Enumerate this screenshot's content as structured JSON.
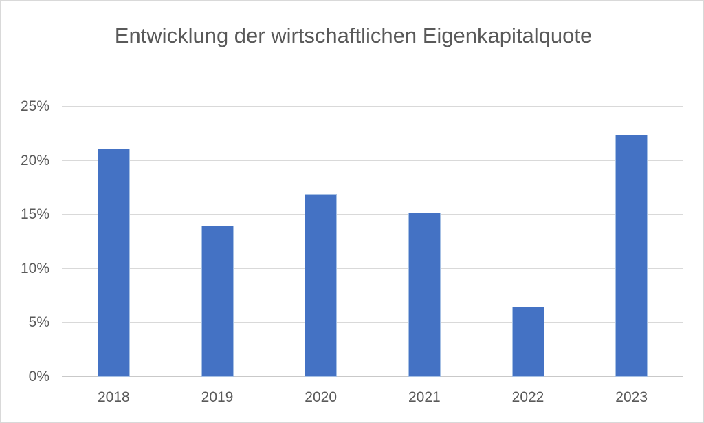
{
  "chart_data": {
    "type": "bar",
    "title": "Entwicklung der wirtschaftlichen Eigenkapitalquote",
    "categories": [
      "2018",
      "2019",
      "2020",
      "2021",
      "2022",
      "2023"
    ],
    "values": [
      21.1,
      14.0,
      16.9,
      15.2,
      6.5,
      22.4
    ],
    "unit": "%",
    "xlabel": "",
    "ylabel": "",
    "ylim": [
      0,
      25
    ],
    "yticks": [
      0,
      5,
      10,
      15,
      20,
      25
    ],
    "ytick_suffix": "%",
    "grid": true,
    "legend": false,
    "colors": {
      "bar_fill": "#4472C4",
      "bar_border": "#A6C0E4",
      "gridline": "#D9D9D9",
      "axis_line": "#C9C9C9",
      "text": "#595959",
      "chart_border": "#D9D9D9",
      "background": "#FFFFFF"
    }
  }
}
